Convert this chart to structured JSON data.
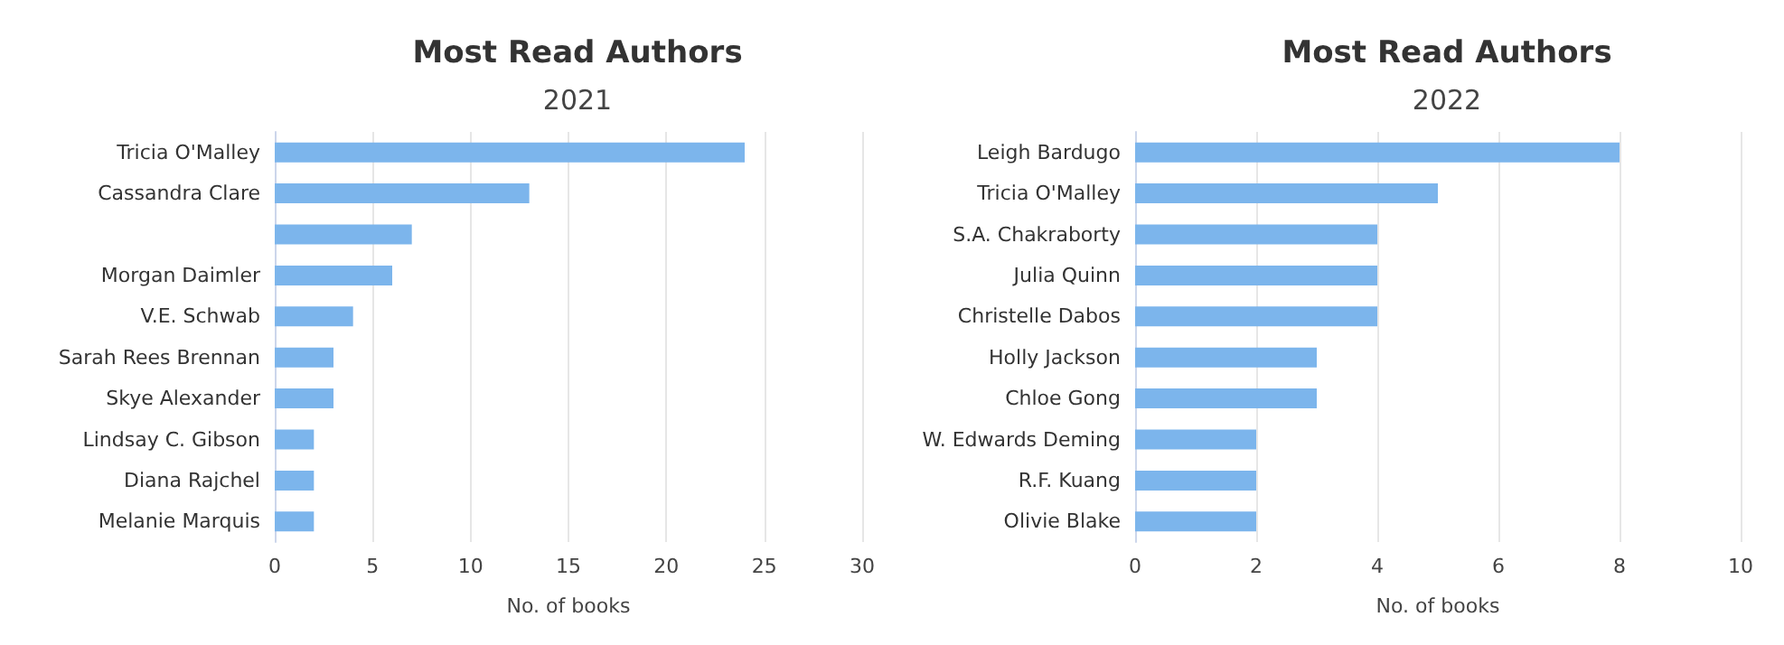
{
  "chart_data": [
    {
      "type": "bar",
      "orientation": "horizontal",
      "title": "Most Read Authors",
      "subtitle": "2021",
      "xlabel": "No. of books",
      "categories": [
        "Tricia O'Malley",
        "Cassandra Clare",
        null,
        "Morgan Daimler",
        "V.E. Schwab",
        "Sarah Rees Brennan",
        "Skye Alexander",
        "Lindsay C. Gibson",
        "Diana Rajchel",
        "Melanie Marquis"
      ],
      "values": [
        24,
        13,
        7,
        6,
        4,
        3,
        3,
        2,
        2,
        2
      ],
      "color": "#7cb5ec",
      "xlim": [
        0,
        30
      ],
      "xticks": [
        0,
        5,
        10,
        15,
        20,
        25,
        30
      ],
      "grid": "x"
    },
    {
      "type": "bar",
      "orientation": "horizontal",
      "title": "Most Read Authors",
      "subtitle": "2022",
      "xlabel": "No. of books",
      "categories": [
        "Leigh Bardugo",
        "Tricia O'Malley",
        "S.A. Chakraborty",
        "Julia Quinn",
        "Christelle Dabos",
        "Holly Jackson",
        "Chloe Gong",
        "W. Edwards Deming",
        "R.F. Kuang",
        "Olivie Blake"
      ],
      "values": [
        8,
        5,
        4,
        4,
        4,
        3,
        3,
        2,
        2,
        2
      ],
      "color": "#7cb5ec",
      "xlim": [
        0,
        10
      ],
      "xticks": [
        0,
        2,
        4,
        6,
        8,
        10
      ],
      "grid": "x"
    }
  ]
}
